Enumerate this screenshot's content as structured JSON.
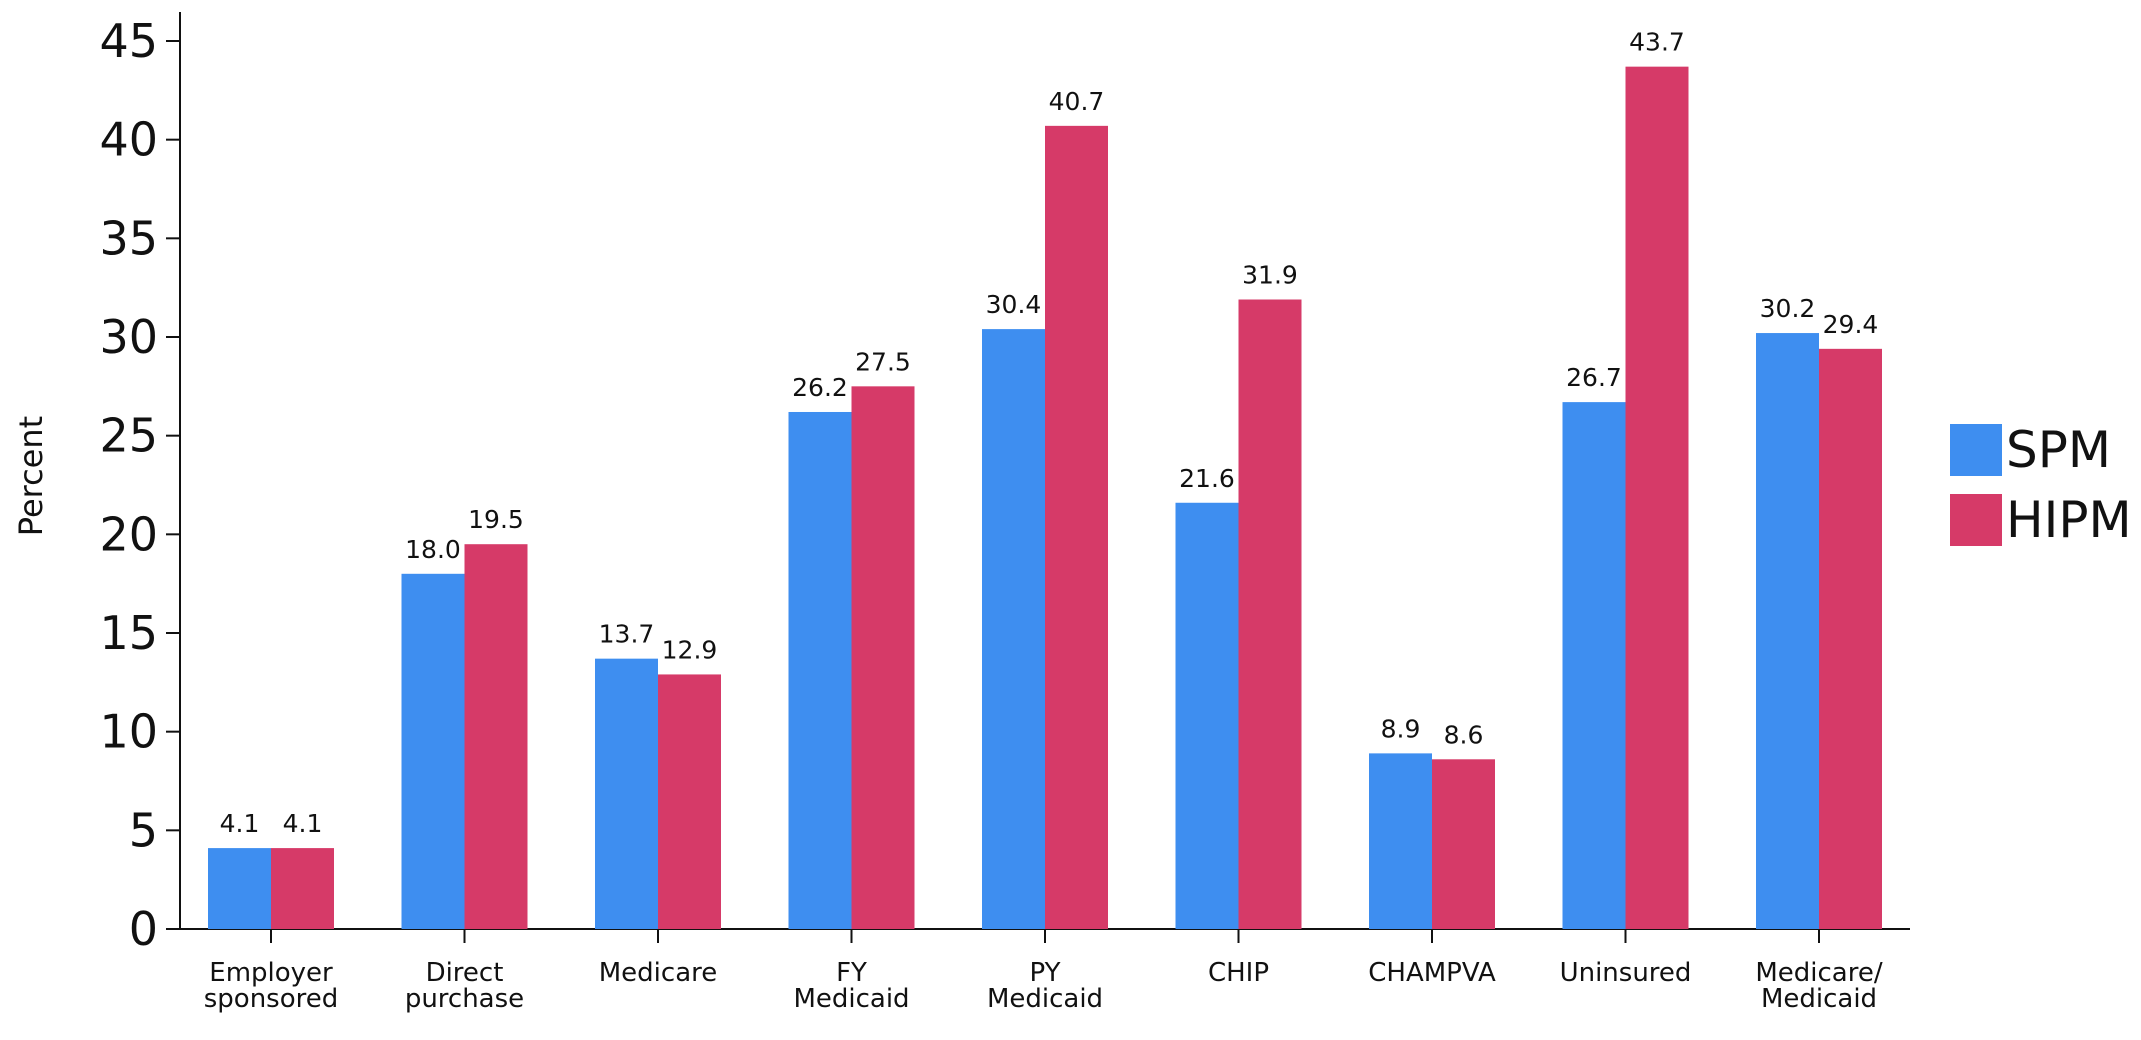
{
  "chart_data": {
    "type": "bar",
    "title": "",
    "xlabel": "",
    "ylabel": "Percent",
    "ylim": [
      0,
      45
    ],
    "yticks": [
      0,
      5,
      10,
      15,
      20,
      25,
      30,
      35,
      40,
      45
    ],
    "grid": false,
    "legend_position": "right",
    "categories": [
      [
        "Employer",
        "sponsored"
      ],
      [
        "Direct",
        "purchase"
      ],
      [
        "Medicare"
      ],
      [
        "FY",
        "Medicaid"
      ],
      [
        "PY",
        "Medicaid"
      ],
      [
        "CHIP"
      ],
      [
        "CHAMPVA"
      ],
      [
        "Uninsured"
      ],
      [
        "Medicare/",
        "Medicaid"
      ]
    ],
    "series": [
      {
        "name": "SPM",
        "color": "#3e8ef0",
        "values": [
          4.1,
          18.0,
          13.7,
          26.2,
          30.4,
          21.6,
          8.9,
          26.7,
          30.2
        ],
        "labels": [
          "4.1",
          "18.0",
          "13.7",
          "26.2",
          "30.4",
          "21.6",
          "8.9",
          "26.7",
          "30.2"
        ]
      },
      {
        "name": "HIPM",
        "color": "#d63a68",
        "values": [
          4.1,
          19.5,
          12.9,
          27.5,
          40.7,
          31.9,
          8.6,
          43.7,
          29.4
        ],
        "labels": [
          "4.1",
          "19.5",
          "12.9",
          "27.5",
          "40.7",
          "31.9",
          "8.6",
          "43.7",
          "29.4"
        ]
      }
    ]
  }
}
